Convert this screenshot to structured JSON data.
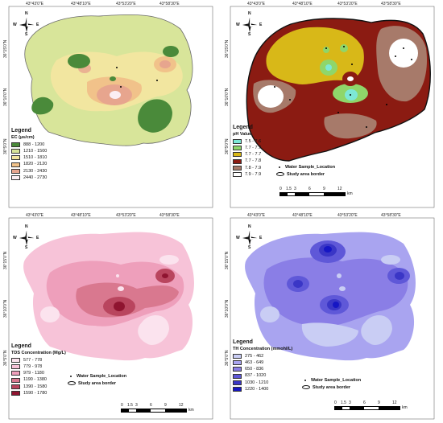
{
  "coords": {
    "x_labels": [
      "43°43'0\"E",
      "43°48'10\"E",
      "43°53'20\"E",
      "43°58'30\"E"
    ],
    "y_labels_p1": [
      "36°15'0\"N",
      "36°10'0\"N",
      "36°5'0\"N"
    ],
    "y_labels_p2": [
      "36°15'0\"N",
      "36°10'0\"N",
      "36°5'0\"N"
    ],
    "y_labels_p3": [
      "36°15'0\"N",
      "36°10'0\"N",
      "36°5'0\"N"
    ],
    "y_labels_p4": [
      "36°15'0\"N",
      "36°10'0\"N",
      "36°5'0\"N"
    ]
  },
  "compass": {
    "n": "N",
    "s": "S",
    "e": "E",
    "w": "W"
  },
  "scale": {
    "ticks": [
      "0",
      "1.5",
      "3",
      "6",
      "9",
      "12"
    ],
    "unit": "km"
  },
  "extras": {
    "sample": "Water Sample_Location",
    "border": "Study area border"
  },
  "panels": [
    {
      "legend_title": "Legend",
      "legend_sub": "EC (µs/cm)",
      "classes": [
        {
          "label": "888 - 1200",
          "color": "#4a8a3a"
        },
        {
          "label": "1210 - 1500",
          "color": "#d8e59a"
        },
        {
          "label": "1510 - 1810",
          "color": "#f2e6a0"
        },
        {
          "label": "1820 - 2120",
          "color": "#f1c28a"
        },
        {
          "label": "2130 - 2430",
          "color": "#e7a58e"
        },
        {
          "label": "2440 - 2730",
          "color": "#fbeef2"
        }
      ]
    },
    {
      "legend_title": "Legend",
      "legend_sub": "pH Value",
      "classes": [
        {
          "label": "7.5 - 7.6",
          "color": "#7de8d6"
        },
        {
          "label": "7.7 - 7.7",
          "color": "#8fd66a"
        },
        {
          "label": "7.7 - 7.7",
          "color": "#d8b818"
        },
        {
          "label": "7.7 - 7.8",
          "color": "#8b1b12"
        },
        {
          "label": "7.8 - 7.9",
          "color": "#a77a6a"
        },
        {
          "label": "7.9 - 7.9",
          "color": "#ffffff"
        }
      ]
    },
    {
      "legend_title": "Legend",
      "legend_sub": "TDS Concentration (Mg/L)",
      "classes": [
        {
          "label": "577 - 778",
          "color": "#fbe3ee"
        },
        {
          "label": "779 - 978",
          "color": "#f7c3d8"
        },
        {
          "label": "979 - 1180",
          "color": "#ee9fbb"
        },
        {
          "label": "1190 - 1380",
          "color": "#d9788f"
        },
        {
          "label": "1390 - 1580",
          "color": "#b9455e"
        },
        {
          "label": "1590 - 1780",
          "color": "#8f1430"
        }
      ]
    },
    {
      "legend_title": "Legend",
      "legend_sub": "TH Concentration (mmohl/L)",
      "classes": [
        {
          "label": "275 - 462",
          "color": "#c9cdf4"
        },
        {
          "label": "463 - 649",
          "color": "#a9a4f0"
        },
        {
          "label": "650 - 836",
          "color": "#8a7ee6"
        },
        {
          "label": "837 - 1020",
          "color": "#5f58d8"
        },
        {
          "label": "1030 - 1210",
          "color": "#3a36c6"
        },
        {
          "label": "1220 - 1400",
          "color": "#1616c4"
        }
      ]
    }
  ]
}
